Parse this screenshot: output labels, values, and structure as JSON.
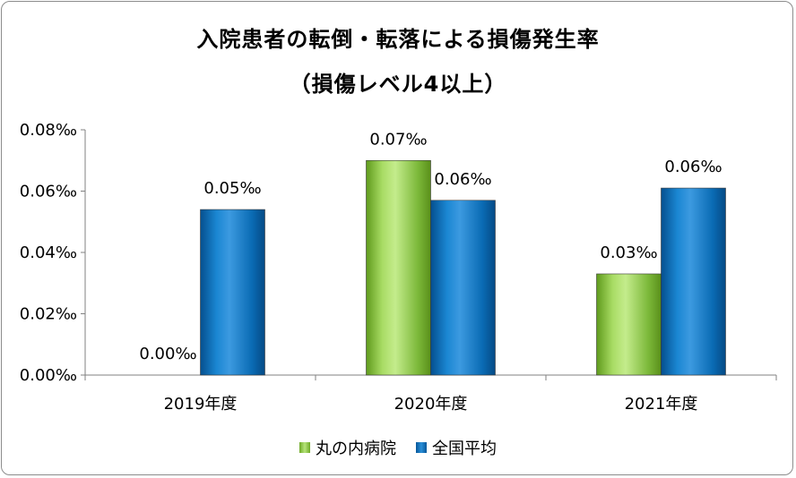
{
  "chart_data": {
    "type": "bar",
    "title": "入院患者の転倒・転落による損傷発生率",
    "subtitle": "（損傷レベル4以上）",
    "categories": [
      "2019年度",
      "2020年度",
      "2021年度"
    ],
    "series": [
      {
        "name": "丸の内病院",
        "color": "#92d050",
        "values": [
          0.0,
          0.07,
          0.033
        ],
        "labels": [
          "0.00‰",
          "0.07‰",
          "0.03‰"
        ]
      },
      {
        "name": "全国平均",
        "color": "#0070c0",
        "values": [
          0.054,
          0.057,
          0.061
        ],
        "labels": [
          "0.05‰",
          "0.06‰",
          "0.06‰"
        ]
      }
    ],
    "ylim": [
      0,
      0.08
    ],
    "yticks": [
      0,
      0.02,
      0.04,
      0.06,
      0.08
    ],
    "ytick_labels": [
      "0.00‰",
      "0.02‰",
      "0.04‰",
      "0.06‰",
      "0.08‰"
    ],
    "legend_position": "bottom",
    "grid": false,
    "xlabel": "",
    "ylabel": ""
  }
}
